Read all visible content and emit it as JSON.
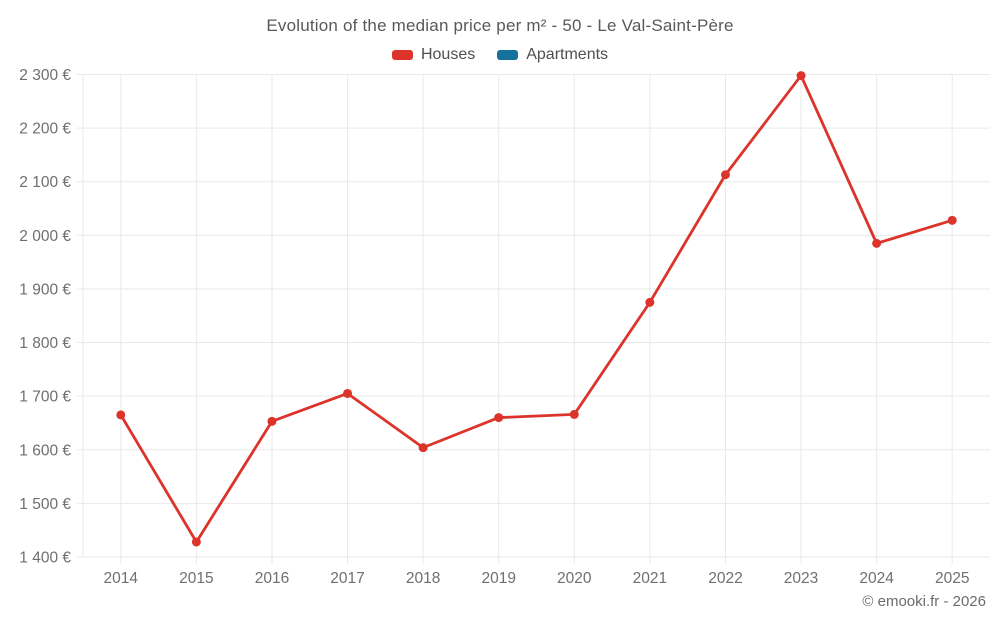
{
  "chart_data": {
    "type": "line",
    "title": "Evolution of the median price per m² - 50 - Le Val-Saint-Père",
    "categories": [
      "2014",
      "2015",
      "2016",
      "2017",
      "2018",
      "2019",
      "2020",
      "2021",
      "2022",
      "2023",
      "2024",
      "2025"
    ],
    "series": [
      {
        "name": "Houses",
        "color": "#dc342b",
        "values": [
          1665,
          1428,
          1653,
          1705,
          1604,
          1660,
          1666,
          1875,
          2113,
          2298,
          1985,
          2028
        ]
      },
      {
        "name": "Apartments",
        "color": "#17719d",
        "values": []
      }
    ],
    "xlabel": "",
    "ylabel": "",
    "ylim": [
      1400,
      2300
    ],
    "ytick_step": 100,
    "ytick_labels": [
      "1 400 €",
      "1 500 €",
      "1 600 €",
      "1 700 €",
      "1 800 €",
      "1 900 €",
      "2 000 €",
      "2 100 €",
      "2 200 €",
      "2 300 €"
    ],
    "grid": true,
    "grid_color": "#e9e9e9",
    "tick_color": "#6f6f6f",
    "legend_position": "top"
  },
  "footer": {
    "credit": "© emooki.fr - 2026"
  }
}
